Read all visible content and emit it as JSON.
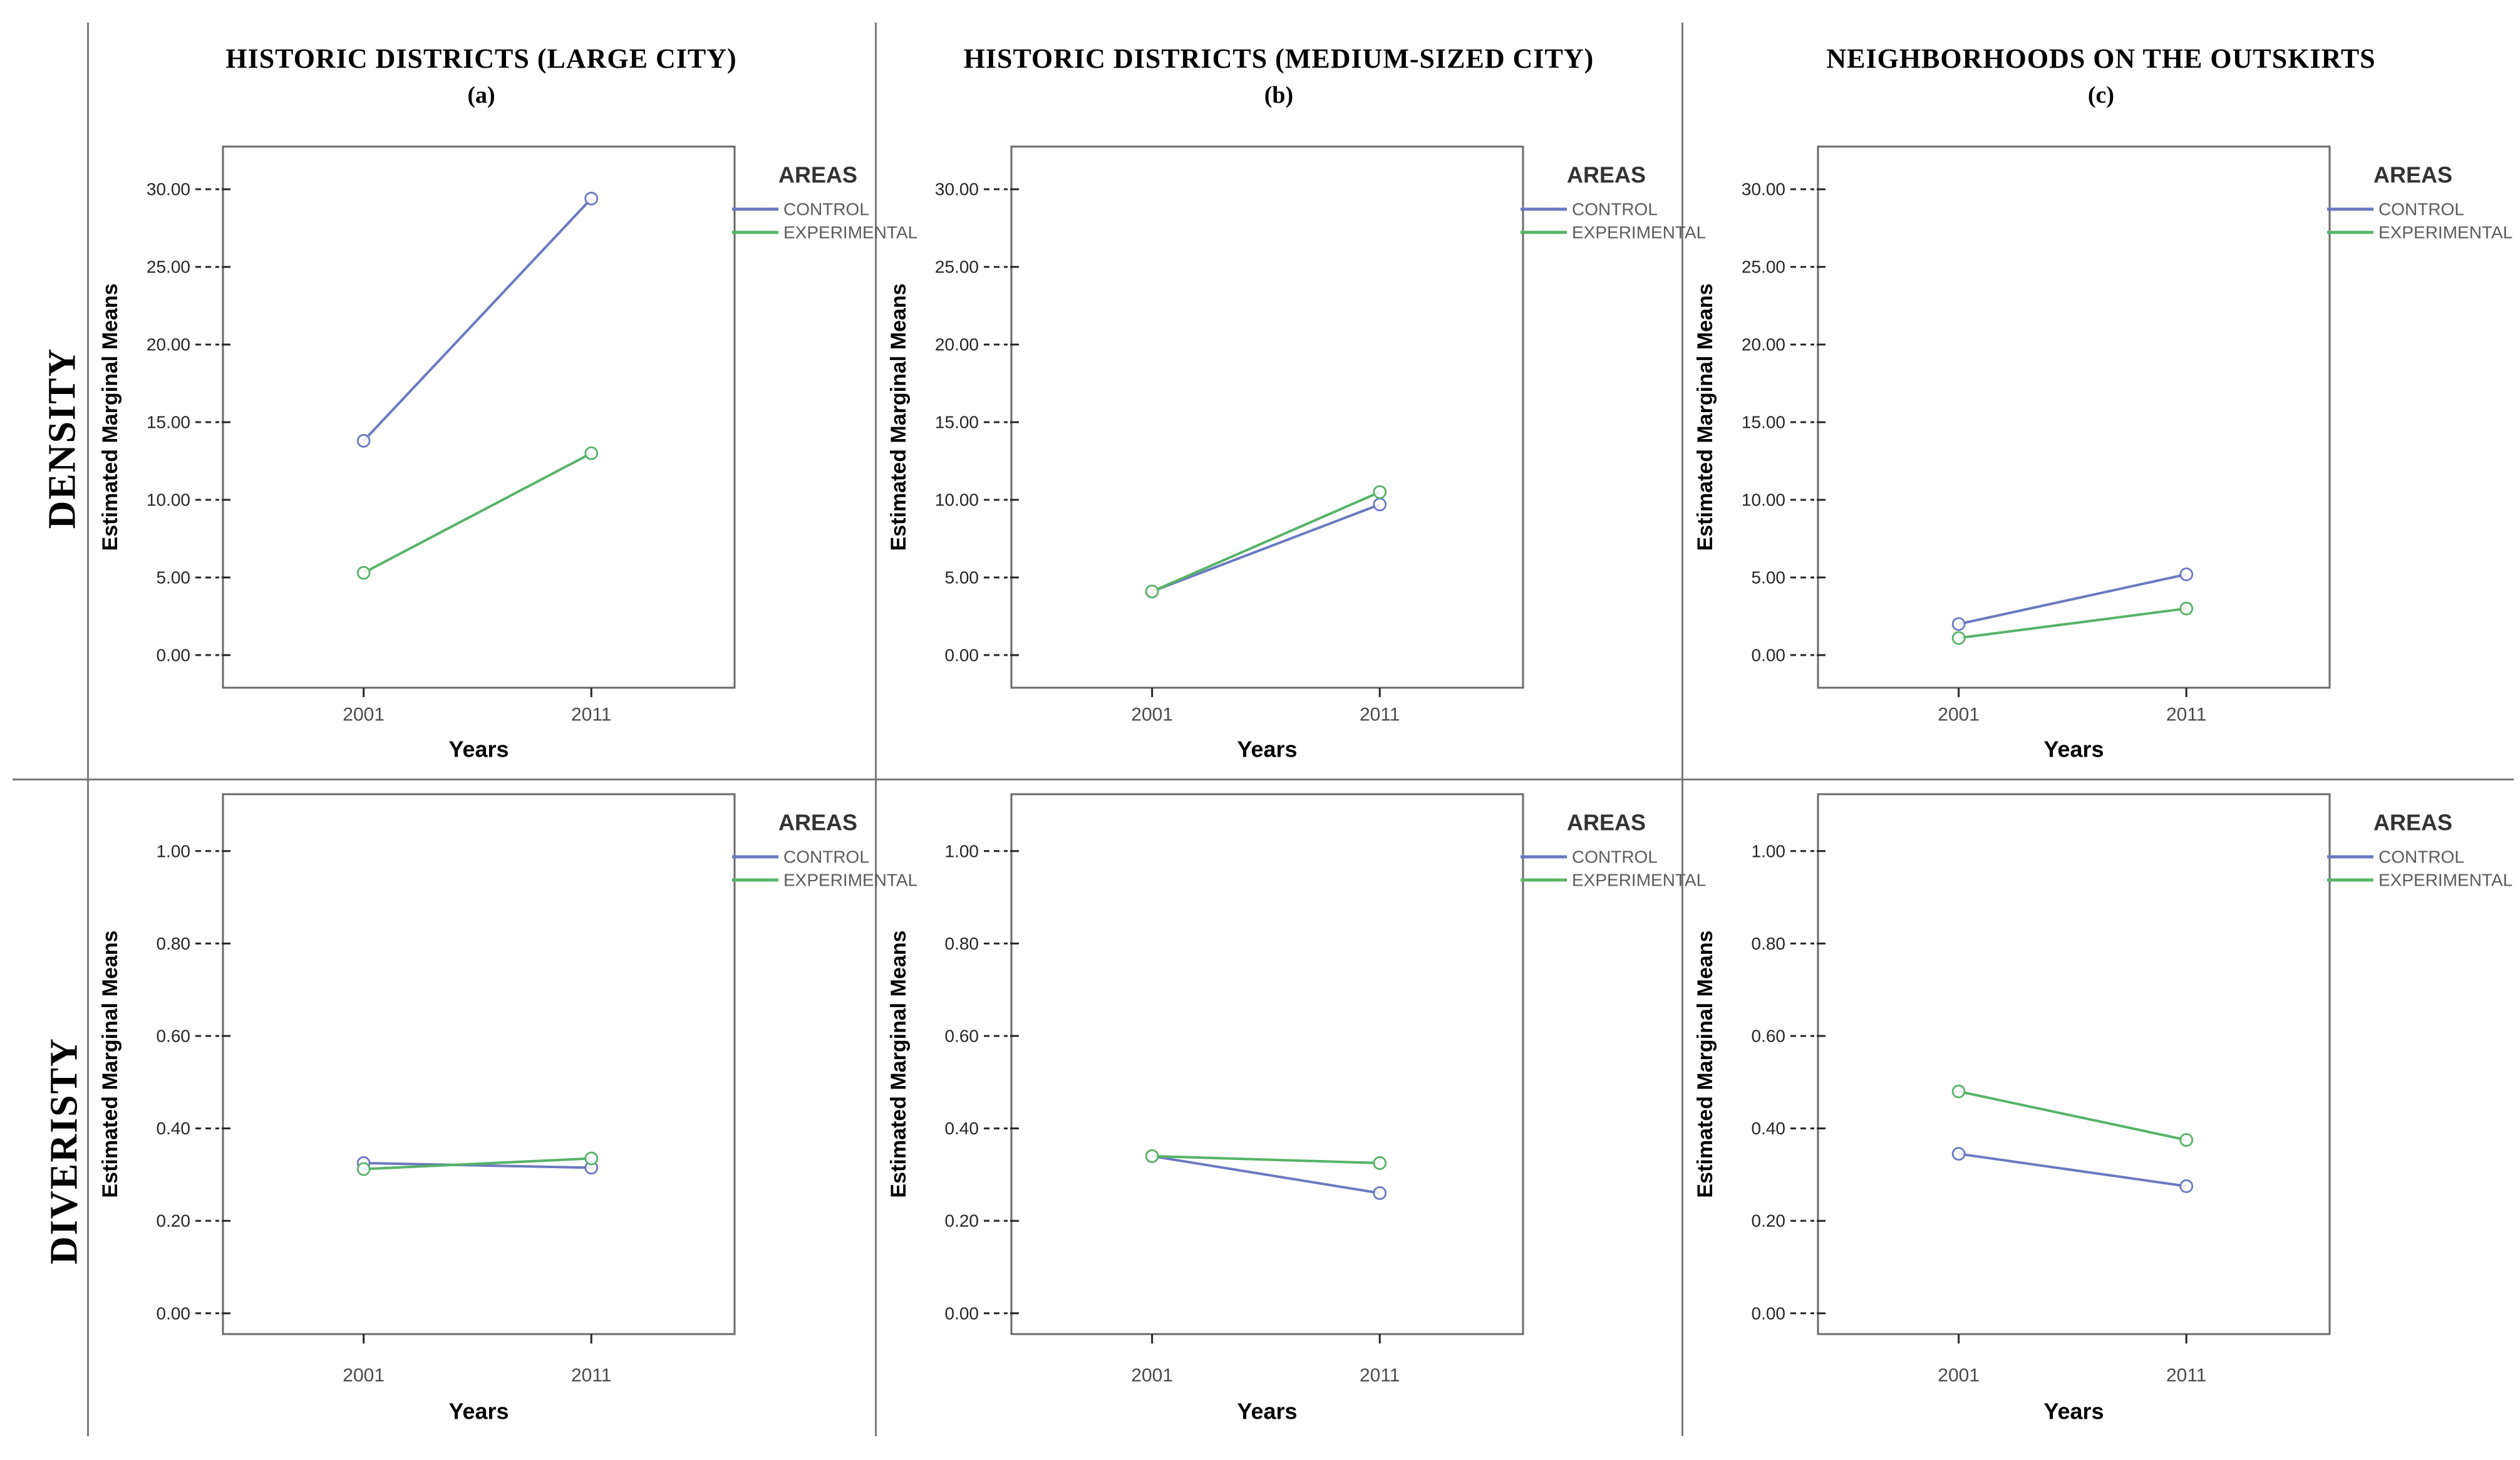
{
  "header": {
    "columns": [
      {
        "title": "HISTORIC DISTRICTS (LARGE CITY)",
        "tag": "(a)"
      },
      {
        "title": "HISTORIC DISTRICTS (MEDIUM-SIZED CITY)",
        "tag": "(b)"
      },
      {
        "title": "NEIGHBORHOODS ON THE OUTSKIRTS",
        "tag": "(c)"
      }
    ]
  },
  "rows": [
    {
      "label": "DENSITY"
    },
    {
      "label": "DIVERISTY"
    }
  ],
  "legend": {
    "title": "AREAS",
    "items": [
      {
        "label": "CONTROL",
        "color": "#6b79c0"
      },
      {
        "label": "EXPERIMENTAL",
        "color": "#57b368"
      }
    ]
  },
  "axes": {
    "x_label": "Years",
    "y_label": "Estimated Marginal Means",
    "x_categories": [
      "2001",
      "2011"
    ]
  },
  "colors": {
    "frame": "#6a6a6a",
    "divider": "#7a7a7a",
    "tick_text": "#262626",
    "category_text": "#4a4a4a",
    "axis_title_text": "#000000",
    "legend_title_text": "#333333",
    "legend_item_text": "#5c5c5c",
    "control_line": "#6b79c0",
    "experimental_line": "#57b368"
  },
  "chart_data": [
    {
      "id": "density-large-city",
      "type": "line",
      "row": "DENSITY",
      "column": "HISTORIC DISTRICTS (LARGE CITY)",
      "x": [
        "2001",
        "2011"
      ],
      "series": [
        {
          "name": "CONTROL",
          "values": [
            13.8,
            29.4
          ]
        },
        {
          "name": "EXPERIMENTAL",
          "values": [
            5.3,
            13.0
          ]
        }
      ],
      "xlabel": "Years",
      "ylabel": "Estimated Marginal Means",
      "yticks": [
        0,
        5,
        10,
        15,
        20,
        25,
        30
      ],
      "ytick_labels": [
        "0.00",
        "5.00",
        "10.00",
        "15.00",
        "20.00",
        "25.00",
        "30.00"
      ],
      "ylim": [
        -2.1,
        32.75
      ],
      "legend_title": "AREAS",
      "legend_position": "right-top",
      "grid": false
    },
    {
      "id": "density-medium-city",
      "type": "line",
      "row": "DENSITY",
      "column": "HISTORIC DISTRICTS (MEDIUM-SIZED CITY)",
      "x": [
        "2001",
        "2011"
      ],
      "series": [
        {
          "name": "CONTROL",
          "values": [
            4.1,
            9.7
          ]
        },
        {
          "name": "EXPERIMENTAL",
          "values": [
            4.1,
            10.5
          ]
        }
      ],
      "xlabel": "Years",
      "ylabel": "Estimated Marginal Means",
      "yticks": [
        0,
        5,
        10,
        15,
        20,
        25,
        30
      ],
      "ytick_labels": [
        "0.00",
        "5.00",
        "10.00",
        "15.00",
        "20.00",
        "25.00",
        "30.00"
      ],
      "ylim": [
        -2.1,
        32.75
      ],
      "legend_title": "AREAS",
      "legend_position": "right-top",
      "grid": false
    },
    {
      "id": "density-outskirts",
      "type": "line",
      "row": "DENSITY",
      "column": "NEIGHBORHOODS ON THE OUTSKIRTS",
      "x": [
        "2001",
        "2011"
      ],
      "series": [
        {
          "name": "CONTROL",
          "values": [
            2.0,
            5.2
          ]
        },
        {
          "name": "EXPERIMENTAL",
          "values": [
            1.1,
            3.0
          ]
        }
      ],
      "xlabel": "Years",
      "ylabel": "Estimated Marginal Means",
      "yticks": [
        0,
        5,
        10,
        15,
        20,
        25,
        30
      ],
      "ytick_labels": [
        "0.00",
        "5.00",
        "10.00",
        "15.00",
        "20.00",
        "25.00",
        "30.00"
      ],
      "ylim": [
        -2.1,
        32.75
      ],
      "legend_title": "AREAS",
      "legend_position": "right-top",
      "grid": false
    },
    {
      "id": "diversity-large-city",
      "type": "line",
      "row": "DIVERISTY",
      "column": "HISTORIC DISTRICTS (LARGE CITY)",
      "x": [
        "2001",
        "2011"
      ],
      "series": [
        {
          "name": "CONTROL",
          "values": [
            0.325,
            0.315
          ]
        },
        {
          "name": "EXPERIMENTAL",
          "values": [
            0.312,
            0.335
          ]
        }
      ],
      "xlabel": "Years",
      "ylabel": "Estimated Marginal Means",
      "yticks": [
        0,
        0.2,
        0.4,
        0.6,
        0.8,
        1.0
      ],
      "ytick_labels": [
        "0.00",
        "0.20",
        "0.40",
        "0.60",
        "0.80",
        "1.00"
      ],
      "ylim": [
        -0.045,
        1.123
      ],
      "legend_title": "AREAS",
      "legend_position": "right-top",
      "grid": false
    },
    {
      "id": "diversity-medium-city",
      "type": "line",
      "row": "DIVERISTY",
      "column": "HISTORIC DISTRICTS (MEDIUM-SIZED CITY)",
      "x": [
        "2001",
        "2011"
      ],
      "series": [
        {
          "name": "CONTROL",
          "values": [
            0.34,
            0.26
          ]
        },
        {
          "name": "EXPERIMENTAL",
          "values": [
            0.34,
            0.325
          ]
        }
      ],
      "xlabel": "Years",
      "ylabel": "Estimated Marginal Means",
      "yticks": [
        0,
        0.2,
        0.4,
        0.6,
        0.8,
        1.0
      ],
      "ytick_labels": [
        "0.00",
        "0.20",
        "0.40",
        "0.60",
        "0.80",
        "1.00"
      ],
      "ylim": [
        -0.045,
        1.123
      ],
      "legend_title": "AREAS",
      "legend_position": "right-top",
      "grid": false
    },
    {
      "id": "diversity-outskirts",
      "type": "line",
      "row": "DIVERISTY",
      "column": "NEIGHBORHOODS ON THE OUTSKIRTS",
      "x": [
        "2001",
        "2011"
      ],
      "series": [
        {
          "name": "CONTROL",
          "values": [
            0.345,
            0.275
          ]
        },
        {
          "name": "EXPERIMENTAL",
          "values": [
            0.48,
            0.375
          ]
        }
      ],
      "xlabel": "Years",
      "ylabel": "Estimated Marginal Means",
      "yticks": [
        0,
        0.2,
        0.4,
        0.6,
        0.8,
        1.0
      ],
      "ytick_labels": [
        "0.00",
        "0.20",
        "0.40",
        "0.60",
        "0.80",
        "1.00"
      ],
      "ylim": [
        -0.045,
        1.123
      ],
      "legend_title": "AREAS",
      "legend_position": "right-top",
      "grid": false
    }
  ]
}
